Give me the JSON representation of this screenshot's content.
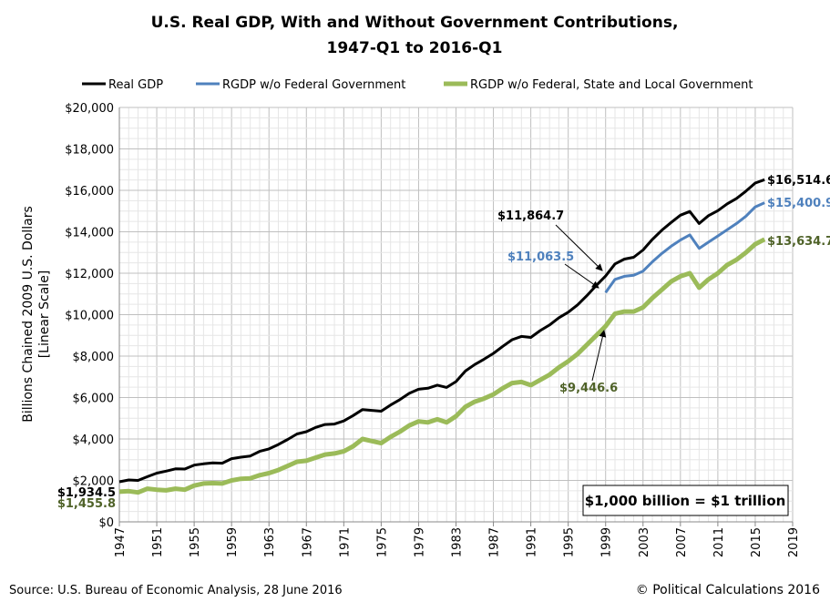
{
  "chart_data": {
    "type": "line",
    "title_lines": [
      "U.S. Real GDP, With and Without Government Contributions,",
      "1947-Q1 to 2016-Q1"
    ],
    "ylabel_lines": [
      "Billions Chained 2009 U.S. Dollars",
      "[Linear Scale]"
    ],
    "xlabel": "",
    "xlim": [
      1947,
      2019
    ],
    "ylim": [
      0,
      20000
    ],
    "x_ticks": [
      "1947",
      "1951",
      "1955",
      "1959",
      "1963",
      "1967",
      "1971",
      "1975",
      "1979",
      "1983",
      "1987",
      "1991",
      "1995",
      "1999",
      "2003",
      "2007",
      "2011",
      "2015",
      "2019"
    ],
    "y_ticks": [
      "$0",
      "$2,000",
      "$4,000",
      "$6,000",
      "$8,000",
      "$10,000",
      "$12,000",
      "$14,000",
      "$16,000",
      "$18,000",
      "$20,000"
    ],
    "grid": true,
    "legend_position": "top",
    "series": [
      {
        "name": "Real GDP",
        "color": "#000000",
        "x": [
          1947,
          1948,
          1949,
          1950,
          1951,
          1952,
          1953,
          1954,
          1955,
          1956,
          1957,
          1958,
          1959,
          1960,
          1961,
          1962,
          1963,
          1964,
          1965,
          1966,
          1967,
          1968,
          1969,
          1970,
          1971,
          1972,
          1973,
          1974,
          1975,
          1976,
          1977,
          1978,
          1979,
          1980,
          1981,
          1982,
          1983,
          1984,
          1985,
          1986,
          1987,
          1988,
          1989,
          1990,
          1991,
          1992,
          1993,
          1994,
          1995,
          1996,
          1997,
          1998,
          1999,
          2000,
          2001,
          2002,
          2003,
          2004,
          2005,
          2006,
          2007,
          2008,
          2009,
          2010,
          2011,
          2012,
          2013,
          2014,
          2015,
          2016
        ],
        "values": [
          1934.5,
          2020,
          2000,
          2180,
          2350,
          2450,
          2560,
          2550,
          2740,
          2800,
          2850,
          2830,
          3050,
          3120,
          3180,
          3400,
          3520,
          3730,
          3980,
          4240,
          4350,
          4560,
          4700,
          4720,
          4870,
          5130,
          5420,
          5380,
          5340,
          5640,
          5900,
          6200,
          6400,
          6450,
          6600,
          6490,
          6770,
          7280,
          7590,
          7850,
          8130,
          8470,
          8790,
          8950,
          8900,
          9230,
          9500,
          9850,
          10120,
          10470,
          10920,
          11410,
          11864.7,
          12450,
          12680,
          12770,
          13120,
          13630,
          14070,
          14450,
          14800,
          14980,
          14400,
          14780,
          15020,
          15350,
          15610,
          15960,
          16350,
          16514.6
        ]
      },
      {
        "name": "RGDP w/o Federal Government",
        "color": "#4f81bd",
        "x": [
          1999,
          2000,
          2001,
          2002,
          2003,
          2004,
          2005,
          2006,
          2007,
          2008,
          2009,
          2010,
          2011,
          2012,
          2013,
          2014,
          2015,
          2016
        ],
        "values": [
          11063.5,
          11700,
          11850,
          11900,
          12100,
          12550,
          12950,
          13300,
          13600,
          13850,
          13200,
          13500,
          13800,
          14100,
          14400,
          14750,
          15200,
          15400.9
        ]
      },
      {
        "name": "RGDP w/o Federal, State and Local Government",
        "color": "#9bbb59",
        "x": [
          1947,
          1948,
          1949,
          1950,
          1951,
          1952,
          1953,
          1954,
          1955,
          1956,
          1957,
          1958,
          1959,
          1960,
          1961,
          1962,
          1963,
          1964,
          1965,
          1966,
          1967,
          1968,
          1969,
          1970,
          1971,
          1972,
          1973,
          1974,
          1975,
          1976,
          1977,
          1978,
          1979,
          1980,
          1981,
          1982,
          1983,
          1984,
          1985,
          1986,
          1987,
          1988,
          1989,
          1990,
          1991,
          1992,
          1993,
          1994,
          1995,
          1996,
          1997,
          1998,
          1999,
          2000,
          2001,
          2002,
          2003,
          2004,
          2005,
          2006,
          2007,
          2008,
          2009,
          2010,
          2011,
          2012,
          2013,
          2014,
          2015,
          2016
        ],
        "values": [
          1455.8,
          1480,
          1420,
          1600,
          1550,
          1520,
          1600,
          1550,
          1750,
          1850,
          1870,
          1850,
          2000,
          2080,
          2100,
          2250,
          2350,
          2500,
          2700,
          2900,
          2950,
          3100,
          3250,
          3300,
          3400,
          3650,
          4000,
          3900,
          3800,
          4100,
          4350,
          4650,
          4850,
          4800,
          4950,
          4800,
          5100,
          5550,
          5800,
          5950,
          6150,
          6450,
          6700,
          6750,
          6600,
          6850,
          7100,
          7450,
          7750,
          8100,
          8550,
          9000,
          9446.6,
          10050,
          10150,
          10150,
          10350,
          10800,
          11200,
          11600,
          11850,
          12000,
          11300,
          11700,
          12000,
          12400,
          12650,
          13000,
          13400,
          13634.7
        ]
      }
    ],
    "annotations": {
      "gdp_start": "$1,934.5",
      "green_start": "$1,455.8",
      "gdp_1999": "$11,864.7",
      "blue_1999": "$11,063.5",
      "green_1999": "$9,446.6",
      "gdp_end": "$16,514.6",
      "blue_end": "$15,400.9",
      "green_end": "$13,634.7",
      "note": "$1,000 billion = $1 trillion",
      "label_colors": {
        "black": "#000000",
        "blue": "#4f81bd",
        "green": "#4f6228"
      }
    }
  },
  "footer": {
    "source": "Source: U.S. Bureau of Economic Analysis, 28 June 2016",
    "copyright": "© Political Calculations 2016"
  }
}
